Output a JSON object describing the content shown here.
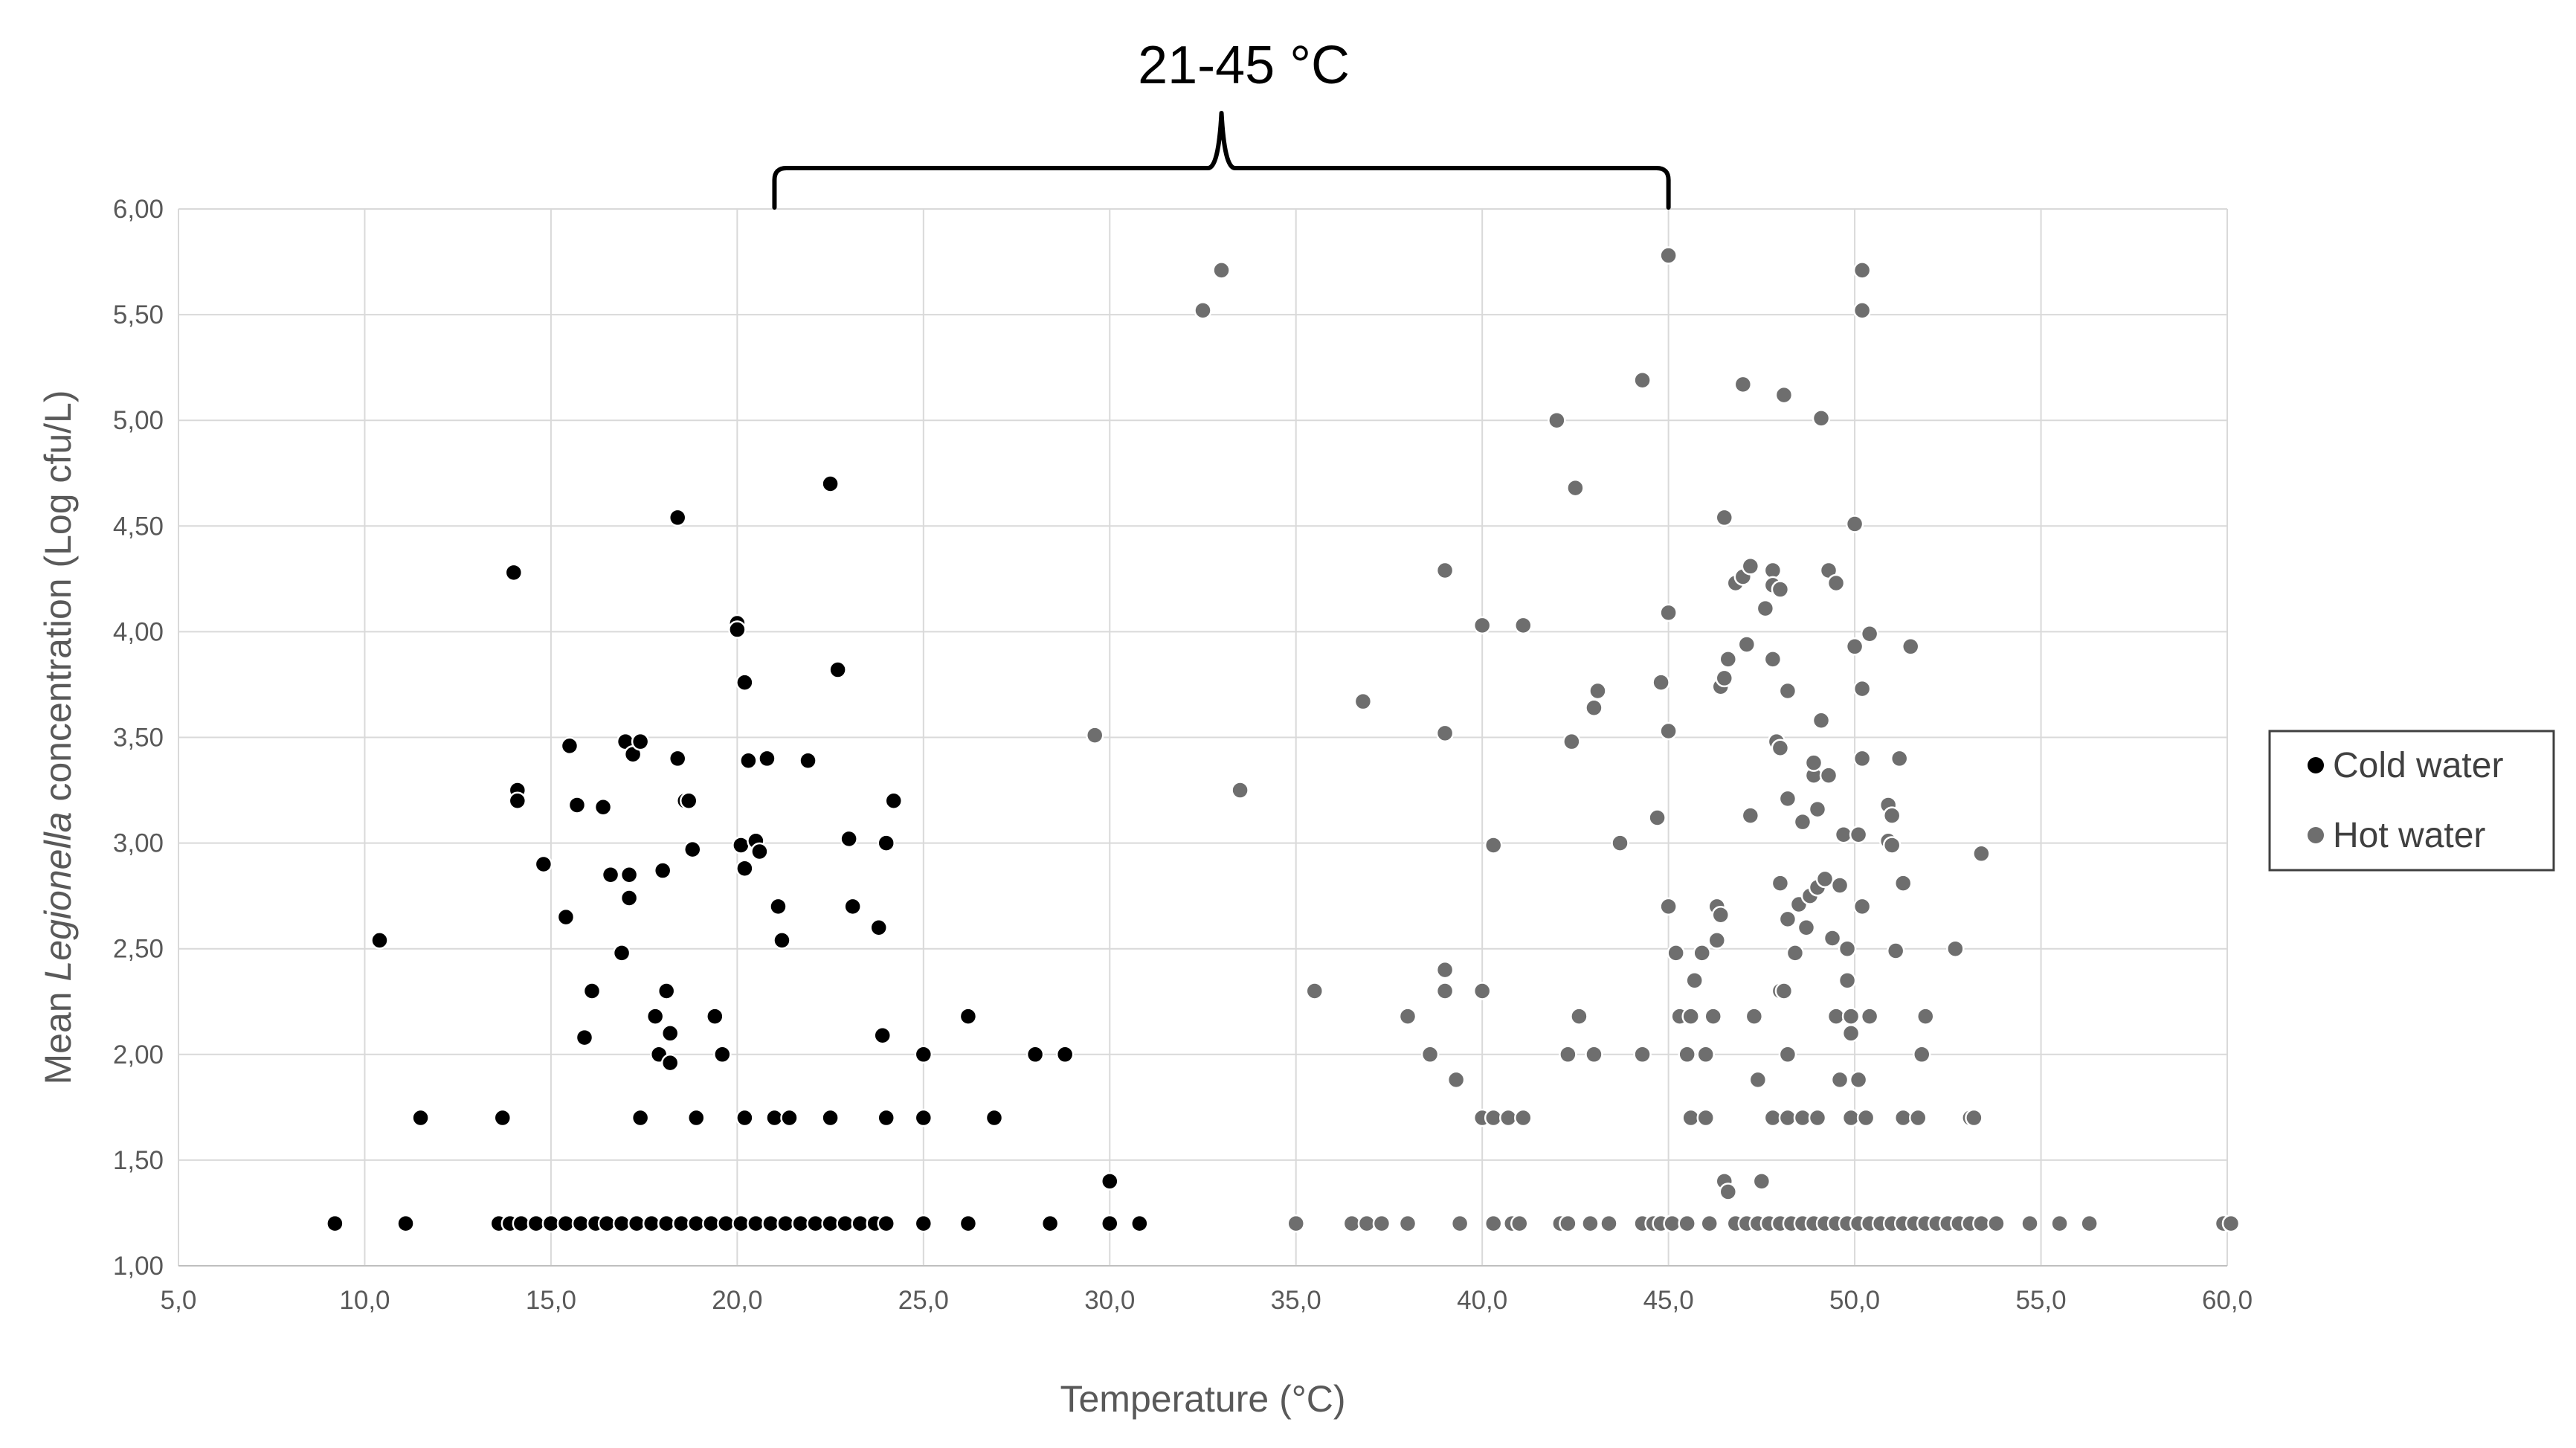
{
  "chart_data": {
    "type": "scatter",
    "xlabel": "Temperature (°C)",
    "ylabel_prefix": "Mean ",
    "ylabel_italic": "Legionella",
    "ylabel_suffix": " concentration (Log cfu/L)",
    "xlim": [
      5,
      60
    ],
    "ylim": [
      1,
      6
    ],
    "xticks": [
      "5,0",
      "10,0",
      "15,0",
      "20,0",
      "25,0",
      "30,0",
      "35,0",
      "40,0",
      "45,0",
      "50,0",
      "55,0",
      "60,0"
    ],
    "yticks": [
      "1,00",
      "1,50",
      "2,00",
      "2,50",
      "3,00",
      "3,50",
      "4,00",
      "4,50",
      "5,00",
      "5,50",
      "6,00"
    ],
    "grid": true,
    "legend_position": "right",
    "annotation": {
      "label": "21-45 °C",
      "x_from": 21,
      "x_to": 45
    },
    "series": [
      {
        "name": "Cold water",
        "color": "#000000",
        "points": [
          [
            9.2,
            1.2
          ],
          [
            11.1,
            1.2
          ],
          [
            13.6,
            1.2
          ],
          [
            13.9,
            1.2
          ],
          [
            14.2,
            1.2
          ],
          [
            14.6,
            1.2
          ],
          [
            15.0,
            1.2
          ],
          [
            15.4,
            1.2
          ],
          [
            15.8,
            1.2
          ],
          [
            16.2,
            1.2
          ],
          [
            16.5,
            1.2
          ],
          [
            16.9,
            1.2
          ],
          [
            17.3,
            1.2
          ],
          [
            17.7,
            1.2
          ],
          [
            18.1,
            1.2
          ],
          [
            18.5,
            1.2
          ],
          [
            18.9,
            1.2
          ],
          [
            19.3,
            1.2
          ],
          [
            19.7,
            1.2
          ],
          [
            20.1,
            1.2
          ],
          [
            20.5,
            1.2
          ],
          [
            20.9,
            1.2
          ],
          [
            21.3,
            1.2
          ],
          [
            21.7,
            1.2
          ],
          [
            22.1,
            1.2
          ],
          [
            22.5,
            1.2
          ],
          [
            22.9,
            1.2
          ],
          [
            23.3,
            1.2
          ],
          [
            23.7,
            1.2
          ],
          [
            24.0,
            1.2
          ],
          [
            25.0,
            1.2
          ],
          [
            26.2,
            1.2
          ],
          [
            28.4,
            1.2
          ],
          [
            30.0,
            1.2
          ],
          [
            30.8,
            1.2
          ],
          [
            30.0,
            1.4
          ],
          [
            11.5,
            1.7
          ],
          [
            13.7,
            1.7
          ],
          [
            17.4,
            1.7
          ],
          [
            18.9,
            1.7
          ],
          [
            20.2,
            1.7
          ],
          [
            21.0,
            1.7
          ],
          [
            21.4,
            1.7
          ],
          [
            22.5,
            1.7
          ],
          [
            24.0,
            1.7
          ],
          [
            25.0,
            1.7
          ],
          [
            26.9,
            1.7
          ],
          [
            10.4,
            2.54
          ],
          [
            14.0,
            4.28
          ],
          [
            14.1,
            3.25
          ],
          [
            14.1,
            3.2
          ],
          [
            14.8,
            2.9
          ],
          [
            15.5,
            3.46
          ],
          [
            15.4,
            2.65
          ],
          [
            15.7,
            3.18
          ],
          [
            15.9,
            2.08
          ],
          [
            16.1,
            2.3
          ],
          [
            16.4,
            3.17
          ],
          [
            16.6,
            2.85
          ],
          [
            16.9,
            2.48
          ],
          [
            17.1,
            2.85
          ],
          [
            17.0,
            3.48
          ],
          [
            17.2,
            3.42
          ],
          [
            17.1,
            2.74
          ],
          [
            17.4,
            3.48
          ],
          [
            17.8,
            2.18
          ],
          [
            17.9,
            2.0
          ],
          [
            18.0,
            2.87
          ],
          [
            18.1,
            2.3
          ],
          [
            18.2,
            2.1
          ],
          [
            18.2,
            1.96
          ],
          [
            18.4,
            3.4
          ],
          [
            18.4,
            4.54
          ],
          [
            18.6,
            3.2
          ],
          [
            18.7,
            3.2
          ],
          [
            18.8,
            2.97
          ],
          [
            19.4,
            2.18
          ],
          [
            19.6,
            2.0
          ],
          [
            20.0,
            4.04
          ],
          [
            20.0,
            4.01
          ],
          [
            20.1,
            2.99
          ],
          [
            20.2,
            2.88
          ],
          [
            20.2,
            3.76
          ],
          [
            20.3,
            3.39
          ],
          [
            20.5,
            3.01
          ],
          [
            20.6,
            2.96
          ],
          [
            20.8,
            3.4
          ],
          [
            21.1,
            2.7
          ],
          [
            21.2,
            2.54
          ],
          [
            21.9,
            3.39
          ],
          [
            22.5,
            4.7
          ],
          [
            22.7,
            3.82
          ],
          [
            23.0,
            3.02
          ],
          [
            23.1,
            2.7
          ],
          [
            23.8,
            2.6
          ],
          [
            23.9,
            2.09
          ],
          [
            24.0,
            3.0
          ],
          [
            24.2,
            3.2
          ],
          [
            25.0,
            2.0
          ],
          [
            26.2,
            2.18
          ],
          [
            28.0,
            2.0
          ],
          [
            28.8,
            2.0
          ]
        ]
      },
      {
        "name": "Hot water",
        "color": "#6e6e6e",
        "points": [
          [
            35.0,
            1.2
          ],
          [
            36.5,
            1.2
          ],
          [
            36.9,
            1.2
          ],
          [
            37.3,
            1.2
          ],
          [
            38.0,
            1.2
          ],
          [
            39.4,
            1.2
          ],
          [
            40.3,
            1.2
          ],
          [
            40.8,
            1.2
          ],
          [
            41.0,
            1.2
          ],
          [
            42.1,
            1.2
          ],
          [
            42.3,
            1.2
          ],
          [
            42.9,
            1.2
          ],
          [
            43.4,
            1.2
          ],
          [
            44.3,
            1.2
          ],
          [
            44.6,
            1.2
          ],
          [
            44.8,
            1.2
          ],
          [
            45.1,
            1.2
          ],
          [
            45.5,
            1.2
          ],
          [
            46.1,
            1.2
          ],
          [
            46.8,
            1.2
          ],
          [
            47.1,
            1.2
          ],
          [
            47.4,
            1.2
          ],
          [
            47.7,
            1.2
          ],
          [
            48.0,
            1.2
          ],
          [
            48.3,
            1.2
          ],
          [
            48.6,
            1.2
          ],
          [
            48.9,
            1.2
          ],
          [
            49.2,
            1.2
          ],
          [
            49.5,
            1.2
          ],
          [
            49.8,
            1.2
          ],
          [
            50.1,
            1.2
          ],
          [
            50.4,
            1.2
          ],
          [
            50.7,
            1.2
          ],
          [
            51.0,
            1.2
          ],
          [
            51.3,
            1.2
          ],
          [
            51.6,
            1.2
          ],
          [
            51.9,
            1.2
          ],
          [
            52.2,
            1.2
          ],
          [
            52.5,
            1.2
          ],
          [
            52.8,
            1.2
          ],
          [
            53.1,
            1.2
          ],
          [
            53.4,
            1.2
          ],
          [
            53.8,
            1.2
          ],
          [
            54.7,
            1.2
          ],
          [
            55.5,
            1.2
          ],
          [
            56.3,
            1.2
          ],
          [
            59.9,
            1.2
          ],
          [
            60.1,
            1.2
          ],
          [
            46.5,
            1.4
          ],
          [
            46.6,
            1.35
          ],
          [
            47.5,
            1.4
          ],
          [
            40.0,
            1.7
          ],
          [
            40.3,
            1.7
          ],
          [
            40.7,
            1.7
          ],
          [
            41.1,
            1.7
          ],
          [
            45.6,
            1.7
          ],
          [
            46.0,
            1.7
          ],
          [
            47.8,
            1.7
          ],
          [
            48.2,
            1.7
          ],
          [
            48.6,
            1.7
          ],
          [
            49.0,
            1.7
          ],
          [
            49.9,
            1.7
          ],
          [
            50.3,
            1.7
          ],
          [
            51.3,
            1.7
          ],
          [
            51.7,
            1.7
          ],
          [
            53.1,
            1.7
          ],
          [
            53.2,
            1.7
          ],
          [
            32.5,
            5.52
          ],
          [
            33.0,
            5.71
          ],
          [
            29.6,
            3.51
          ],
          [
            33.5,
            3.25
          ],
          [
            35.5,
            2.3
          ],
          [
            36.8,
            3.67
          ],
          [
            38.0,
            2.18
          ],
          [
            38.6,
            2.0
          ],
          [
            39.0,
            4.29
          ],
          [
            39.0,
            3.52
          ],
          [
            39.0,
            2.4
          ],
          [
            39.0,
            2.3
          ],
          [
            39.3,
            1.88
          ],
          [
            40.0,
            4.03
          ],
          [
            40.0,
            2.3
          ],
          [
            40.3,
            2.99
          ],
          [
            41.1,
            4.03
          ],
          [
            42.0,
            5.0
          ],
          [
            42.3,
            2.0
          ],
          [
            42.5,
            4.68
          ],
          [
            42.4,
            3.48
          ],
          [
            42.6,
            2.18
          ],
          [
            43.0,
            3.64
          ],
          [
            43.1,
            3.72
          ],
          [
            43.0,
            2.0
          ],
          [
            43.7,
            3.0
          ],
          [
            44.3,
            5.19
          ],
          [
            44.3,
            2.0
          ],
          [
            44.7,
            3.12
          ],
          [
            44.8,
            3.76
          ],
          [
            45.0,
            5.78
          ],
          [
            45.0,
            4.09
          ],
          [
            45.0,
            3.53
          ],
          [
            45.0,
            2.7
          ],
          [
            45.2,
            2.48
          ],
          [
            45.3,
            2.18
          ],
          [
            45.5,
            2.0
          ],
          [
            45.6,
            2.18
          ],
          [
            45.7,
            2.35
          ],
          [
            45.9,
            2.48
          ],
          [
            46.0,
            2.0
          ],
          [
            46.2,
            2.18
          ],
          [
            46.3,
            2.54
          ],
          [
            46.3,
            2.7
          ],
          [
            46.4,
            2.66
          ],
          [
            46.4,
            3.74
          ],
          [
            46.5,
            3.78
          ],
          [
            46.5,
            4.54
          ],
          [
            46.6,
            3.87
          ],
          [
            46.8,
            4.23
          ],
          [
            47.0,
            5.17
          ],
          [
            47.0,
            4.26
          ],
          [
            47.1,
            3.94
          ],
          [
            47.2,
            4.31
          ],
          [
            47.2,
            3.13
          ],
          [
            47.4,
            1.88
          ],
          [
            47.3,
            2.18
          ],
          [
            47.6,
            4.11
          ],
          [
            47.8,
            4.29
          ],
          [
            47.8,
            4.22
          ],
          [
            47.8,
            3.87
          ],
          [
            47.9,
            3.48
          ],
          [
            48.0,
            4.2
          ],
          [
            48.0,
            3.45
          ],
          [
            48.0,
            2.81
          ],
          [
            48.0,
            2.3
          ],
          [
            48.1,
            2.3
          ],
          [
            48.1,
            5.12
          ],
          [
            48.2,
            3.72
          ],
          [
            48.2,
            3.21
          ],
          [
            48.2,
            2.0
          ],
          [
            48.2,
            2.64
          ],
          [
            48.4,
            2.48
          ],
          [
            48.5,
            2.71
          ],
          [
            48.6,
            3.1
          ],
          [
            48.7,
            2.6
          ],
          [
            48.8,
            2.75
          ],
          [
            48.9,
            3.32
          ],
          [
            48.9,
            3.38
          ],
          [
            49.0,
            3.16
          ],
          [
            49.0,
            2.79
          ],
          [
            49.1,
            3.58
          ],
          [
            49.1,
            5.01
          ],
          [
            49.2,
            2.83
          ],
          [
            49.3,
            4.29
          ],
          [
            49.3,
            3.32
          ],
          [
            49.4,
            2.55
          ],
          [
            49.5,
            4.23
          ],
          [
            49.5,
            2.18
          ],
          [
            49.6,
            2.8
          ],
          [
            49.6,
            1.88
          ],
          [
            49.7,
            3.04
          ],
          [
            49.8,
            2.5
          ],
          [
            49.8,
            2.35
          ],
          [
            49.9,
            2.18
          ],
          [
            49.9,
            2.1
          ],
          [
            50.0,
            4.51
          ],
          [
            50.0,
            3.93
          ],
          [
            50.1,
            3.04
          ],
          [
            50.1,
            1.88
          ],
          [
            50.2,
            2.7
          ],
          [
            50.2,
            3.4
          ],
          [
            50.2,
            3.73
          ],
          [
            50.2,
            5.52
          ],
          [
            50.2,
            5.71
          ],
          [
            50.4,
            2.18
          ],
          [
            50.4,
            3.99
          ],
          [
            50.9,
            3.01
          ],
          [
            50.9,
            3.18
          ],
          [
            51.0,
            2.99
          ],
          [
            51.0,
            3.13
          ],
          [
            51.1,
            2.49
          ],
          [
            51.2,
            3.4
          ],
          [
            51.3,
            2.81
          ],
          [
            51.5,
            3.93
          ],
          [
            51.8,
            2.0
          ],
          [
            51.9,
            2.18
          ],
          [
            52.7,
            2.5
          ],
          [
            53.4,
            2.95
          ]
        ]
      }
    ]
  },
  "legend": {
    "items": [
      {
        "label": "Cold water",
        "color": "#000000"
      },
      {
        "label": "Hot water",
        "color": "#6e6e6e"
      }
    ]
  }
}
